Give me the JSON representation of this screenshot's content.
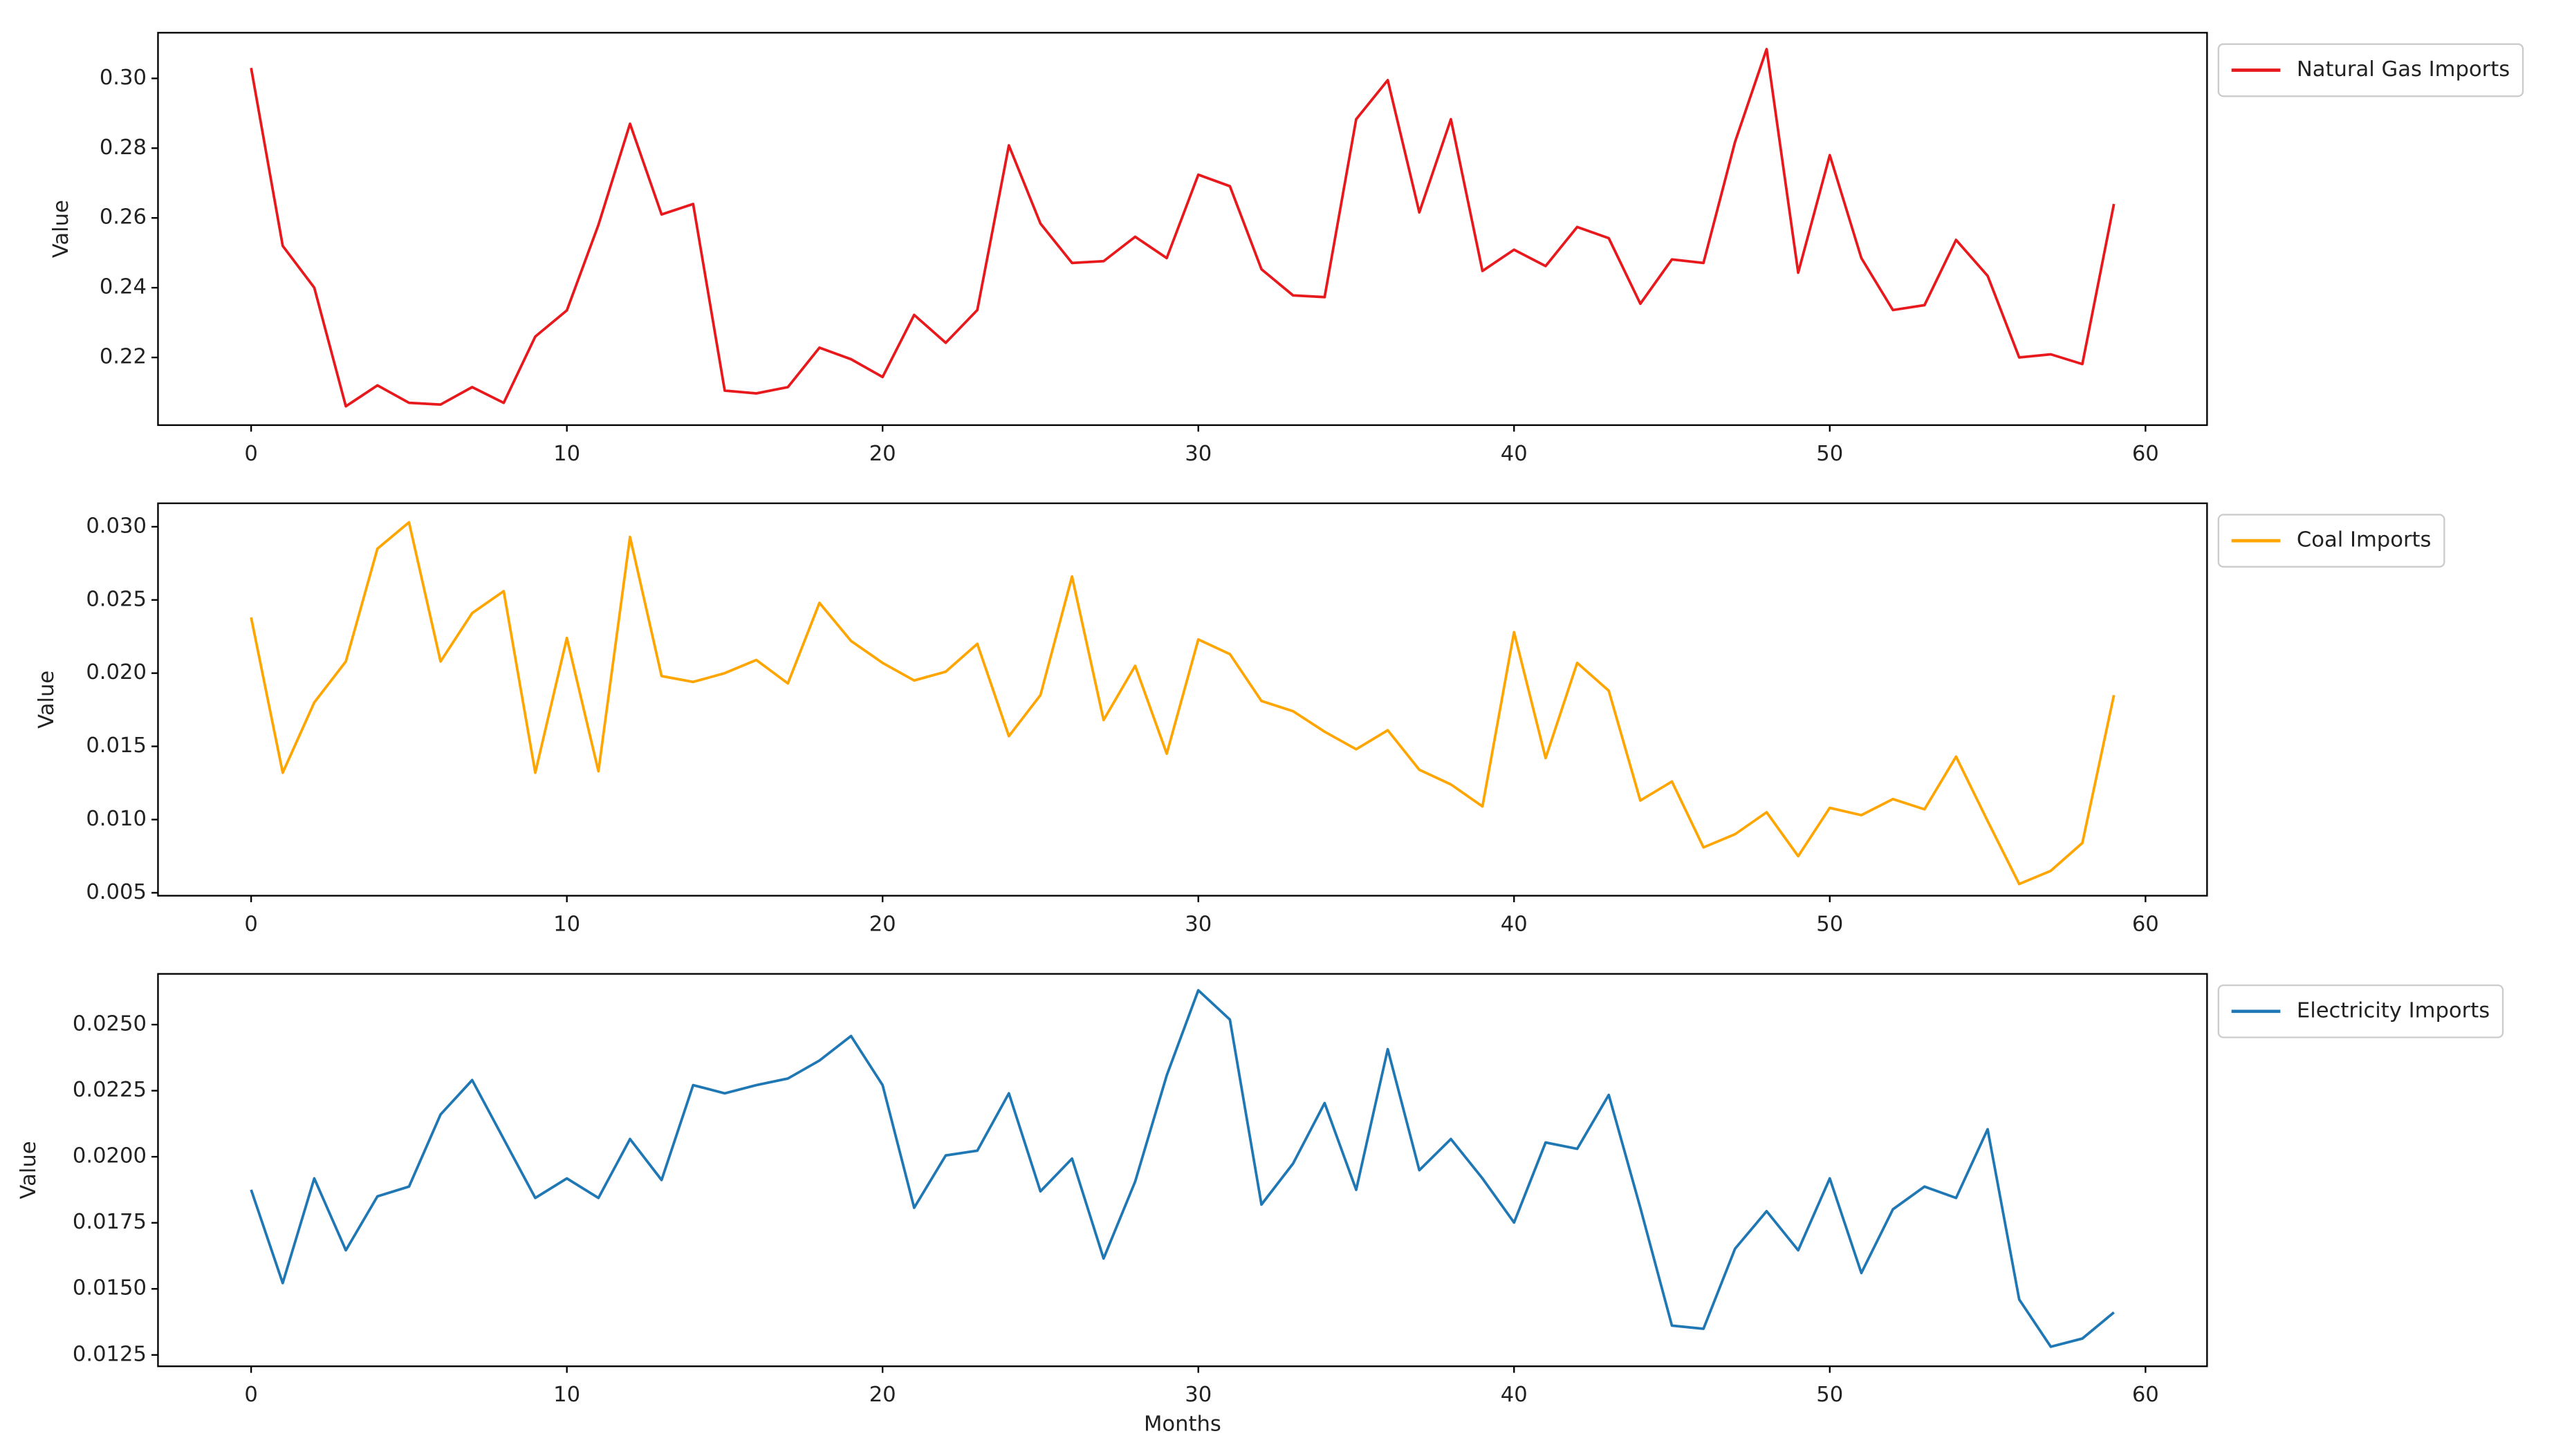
{
  "chart_data": [
    {
      "type": "line",
      "ylabel": "Value",
      "x": [
        0,
        1,
        2,
        3,
        4,
        5,
        6,
        7,
        8,
        9,
        10,
        11,
        12,
        13,
        14,
        15,
        16,
        17,
        18,
        19,
        20,
        21,
        22,
        23,
        24,
        25,
        26,
        27,
        28,
        29,
        30,
        31,
        32,
        33,
        34,
        35,
        36,
        37,
        38,
        39,
        40,
        41,
        42,
        43,
        44,
        45,
        46,
        47,
        48,
        49,
        50,
        51,
        52,
        53,
        54,
        55,
        56,
        57,
        58,
        59
      ],
      "series": [
        {
          "name": "Natural Gas Imports",
          "color": "#e8191c",
          "values": [
            0.303,
            0.252,
            0.24,
            0.206,
            0.212,
            0.207,
            0.2065,
            0.2115,
            0.207,
            0.226,
            0.2335,
            0.258,
            0.287,
            0.261,
            0.264,
            0.2105,
            0.2097,
            0.2115,
            0.2228,
            0.2195,
            0.2144,
            0.2322,
            0.2242,
            0.2336,
            0.2808,
            0.2584,
            0.2471,
            0.2476,
            0.2546,
            0.2485,
            0.2724,
            0.2691,
            0.2453,
            0.2378,
            0.2373,
            0.2883,
            0.2995,
            0.2616,
            0.2883,
            0.2448,
            0.2509,
            0.2462,
            0.2574,
            0.2542,
            0.2354,
            0.2481,
            0.2471,
            0.2818,
            0.3084,
            0.2443,
            0.278,
            0.2485,
            0.2336,
            0.235,
            0.2537,
            0.2434,
            0.22,
            0.2209,
            0.2181,
            0.264
          ]
        }
      ],
      "xlim": [
        -2.95,
        61.95
      ],
      "xticks": [
        0,
        10,
        20,
        30,
        40,
        50,
        60
      ],
      "ylim": [
        0.2006,
        0.3131
      ],
      "yticks": [
        0.22,
        0.24,
        0.26,
        0.28,
        {
          "value": 0.3,
          "label": "0.30"
        }
      ],
      "legend": "outside upper right"
    },
    {
      "type": "line",
      "ylabel": "Value",
      "x": [
        0,
        1,
        2,
        3,
        4,
        5,
        6,
        7,
        8,
        9,
        10,
        11,
        12,
        13,
        14,
        15,
        16,
        17,
        18,
        19,
        20,
        21,
        22,
        23,
        24,
        25,
        26,
        27,
        28,
        29,
        30,
        31,
        32,
        33,
        34,
        35,
        36,
        37,
        38,
        39,
        40,
        41,
        42,
        43,
        44,
        45,
        46,
        47,
        48,
        49,
        50,
        51,
        52,
        53,
        54,
        55,
        56,
        57,
        58,
        59
      ],
      "series": [
        {
          "name": "Coal Imports",
          "color": "#ffa500",
          "values": [
            0.0238,
            0.0132,
            0.018,
            0.0208,
            0.0285,
            0.0303,
            0.0208,
            0.0241,
            0.0256,
            0.0132,
            0.0224,
            0.0133,
            0.0293,
            0.0198,
            0.0194,
            0.02,
            0.0209,
            0.0193,
            0.0248,
            0.0222,
            0.0207,
            0.0195,
            0.0201,
            0.022,
            0.0157,
            0.0185,
            0.0266,
            0.0168,
            0.0205,
            0.0145,
            0.0223,
            0.0213,
            0.0181,
            0.0174,
            0.016,
            0.0148,
            0.0161,
            0.0134,
            0.0124,
            0.0109,
            0.0228,
            0.0142,
            0.0207,
            0.0188,
            0.0113,
            0.0126,
            0.0081,
            0.009,
            0.0105,
            0.0075,
            0.0108,
            0.0103,
            0.0114,
            0.0107,
            0.0143,
            0.0099,
            0.0056,
            0.0065,
            0.0084,
            0.0185
          ]
        }
      ],
      "xlim": [
        -2.95,
        61.95
      ],
      "xticks": [
        0,
        10,
        20,
        30,
        40,
        50,
        60
      ],
      "ylim": [
        0.0048,
        0.0316
      ],
      "yticks": [
        0.005,
        {
          "value": 0.01,
          "label": "0.010"
        },
        0.015,
        {
          "value": 0.02,
          "label": "0.020"
        },
        0.025,
        {
          "value": 0.03,
          "label": "0.030"
        }
      ],
      "legend": "outside upper right"
    },
    {
      "type": "line",
      "ylabel": "Value",
      "xlabel": "Months",
      "x": [
        0,
        1,
        2,
        3,
        4,
        5,
        6,
        7,
        8,
        9,
        10,
        11,
        12,
        13,
        14,
        15,
        16,
        17,
        18,
        19,
        20,
        21,
        22,
        23,
        24,
        25,
        26,
        27,
        28,
        29,
        30,
        31,
        32,
        33,
        34,
        35,
        36,
        37,
        38,
        39,
        40,
        41,
        42,
        43,
        44,
        45,
        46,
        47,
        48,
        49,
        50,
        51,
        52,
        53,
        54,
        55,
        56,
        57,
        58,
        59
      ],
      "series": [
        {
          "name": "Electricity Imports",
          "color": "#1f77b4",
          "values": [
            0.01875,
            0.01522,
            0.01918,
            0.01646,
            0.0185,
            0.01887,
            0.0216,
            0.0229,
            0.02067,
            0.01844,
            0.01918,
            0.01844,
            0.02067,
            0.01912,
            0.02271,
            0.0224,
            0.02271,
            0.02296,
            0.02364,
            0.02457,
            0.02271,
            0.01807,
            0.02005,
            0.02023,
            0.0224,
            0.01869,
            0.01993,
            0.01615,
            0.01906,
            0.02308,
            0.0263,
            0.02519,
            0.01819,
            0.01974,
            0.02203,
            0.01875,
            0.02407,
            0.01949,
            0.02067,
            0.01918,
            0.01751,
            0.02054,
            0.0203,
            0.02234,
            0.01807,
            0.01361,
            0.01349,
            0.01652,
            0.01794,
            0.01646,
            0.01918,
            0.0156,
            0.01801,
            0.01887,
            0.01844,
            0.02104,
            0.0146,
            0.01281,
            0.01312,
            0.01411
          ]
        }
      ],
      "xlim": [
        -2.95,
        61.95
      ],
      "xticks": [
        0,
        10,
        20,
        30,
        40,
        50,
        60
      ],
      "ylim": [
        0.01207,
        0.02692
      ],
      "yticks": [
        0.0125,
        {
          "value": 0.015,
          "label": "0.0150"
        },
        0.0175,
        {
          "value": 0.02,
          "label": "0.0200"
        },
        0.0225,
        {
          "value": 0.025,
          "label": "0.0250"
        }
      ],
      "legend": "outside upper right"
    }
  ]
}
